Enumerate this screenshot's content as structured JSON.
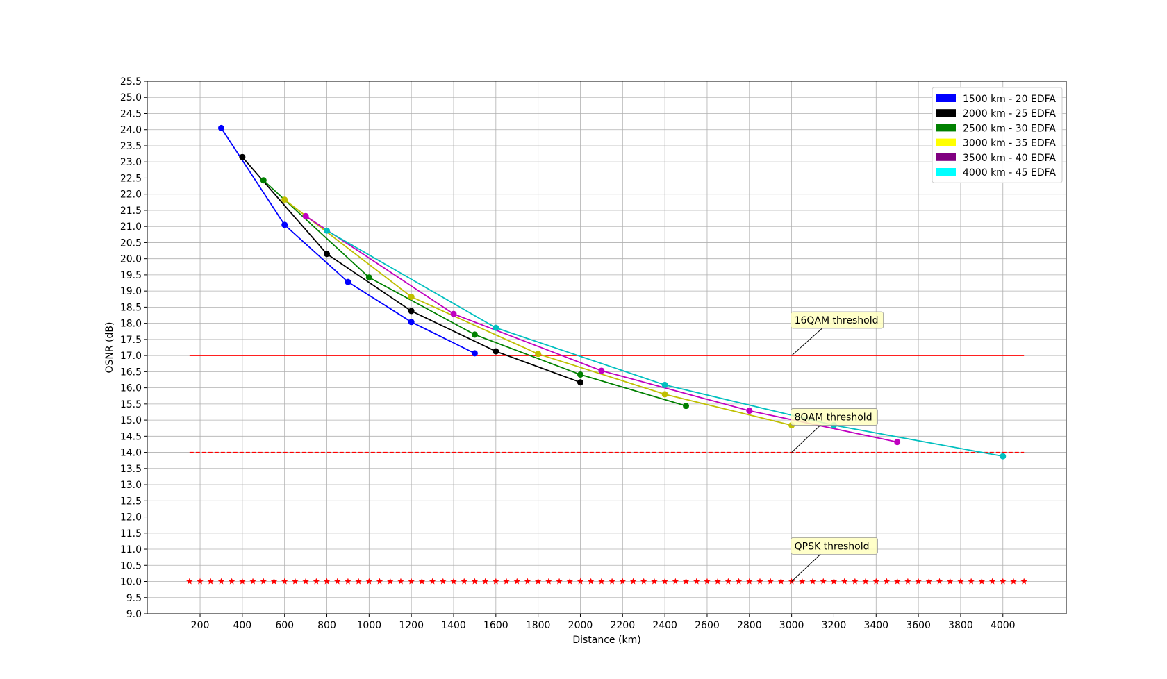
{
  "chart_data": {
    "type": "line",
    "xlabel": "Distance (km)",
    "ylabel": "OSNR (dB)",
    "xlim": [
      -50,
      4300
    ],
    "ylim": [
      9.0,
      25.5
    ],
    "xticks": [
      200,
      400,
      600,
      800,
      1000,
      1200,
      1400,
      1600,
      1800,
      2000,
      2200,
      2400,
      2600,
      2800,
      3000,
      3200,
      3400,
      3600,
      3800,
      4000
    ],
    "ytick_start": 9.0,
    "ytick_end": 25.5,
    "ytick_step": 0.5,
    "grid": true,
    "legend_position": "top-right",
    "series": [
      {
        "name": "1500 km - 20 EDFA",
        "legend_color": "#0000ff",
        "line_color": "#0000ff",
        "marker_color": "#0000ff",
        "x": [
          300,
          600,
          900,
          1200,
          1500
        ],
        "y": [
          24.05,
          21.05,
          19.28,
          18.04,
          17.07
        ]
      },
      {
        "name": "2000 km - 25 EDFA",
        "legend_color": "#000000",
        "line_color": "#000000",
        "marker_color": "#000000",
        "x": [
          400,
          800,
          1200,
          1600,
          2000
        ],
        "y": [
          23.15,
          20.15,
          18.38,
          17.13,
          16.17
        ]
      },
      {
        "name": "2500 km - 30 EDFA",
        "legend_color": "#008000",
        "line_color": "#008000",
        "marker_color": "#008000",
        "x": [
          500,
          1000,
          1500,
          2000,
          2500
        ],
        "y": [
          22.43,
          19.42,
          17.65,
          16.41,
          15.44
        ]
      },
      {
        "name": "3000 km - 35 EDFA",
        "legend_color": "#ffff00",
        "line_color": "#bfbf00",
        "marker_color": "#bfbf00",
        "x": [
          600,
          1200,
          1800,
          2400,
          3000
        ],
        "y": [
          21.83,
          18.82,
          17.05,
          15.8,
          14.84
        ]
      },
      {
        "name": "3500 km - 40 EDFA",
        "legend_color": "#800080",
        "line_color": "#c000c0",
        "marker_color": "#c000c0",
        "x": [
          700,
          1400,
          2100,
          2800,
          3500
        ],
        "y": [
          21.32,
          18.29,
          16.53,
          15.29,
          14.32
        ]
      },
      {
        "name": "4000 km - 45 EDFA",
        "legend_color": "#00ffff",
        "line_color": "#00bfbf",
        "marker_color": "#00bfbf",
        "x": [
          800,
          1600,
          2400,
          3200,
          4000
        ],
        "y": [
          20.87,
          17.86,
          16.09,
          14.84,
          13.88
        ]
      }
    ],
    "thresholds": [
      {
        "label": "16QAM threshold",
        "y": 17.0,
        "x_start": 150,
        "x_end": 4100,
        "style": "solid",
        "color": "#ff0000",
        "anchor_x": 3000,
        "text_x": 3000,
        "text_y": 18.1
      },
      {
        "label": "8QAM threshold",
        "y": 14.0,
        "x_start": 150,
        "x_end": 4100,
        "style": "dashed",
        "color": "#ff0000",
        "anchor_x": 3000,
        "text_x": 3000,
        "text_y": 15.1
      },
      {
        "label": "QPSK threshold",
        "y": 10.0,
        "x_start": 150,
        "x_end": 4100,
        "style": "stars",
        "color": "#ff0000",
        "anchor_x": 3000,
        "text_x": 3000,
        "text_y": 11.1,
        "marker_step": 50
      }
    ]
  }
}
